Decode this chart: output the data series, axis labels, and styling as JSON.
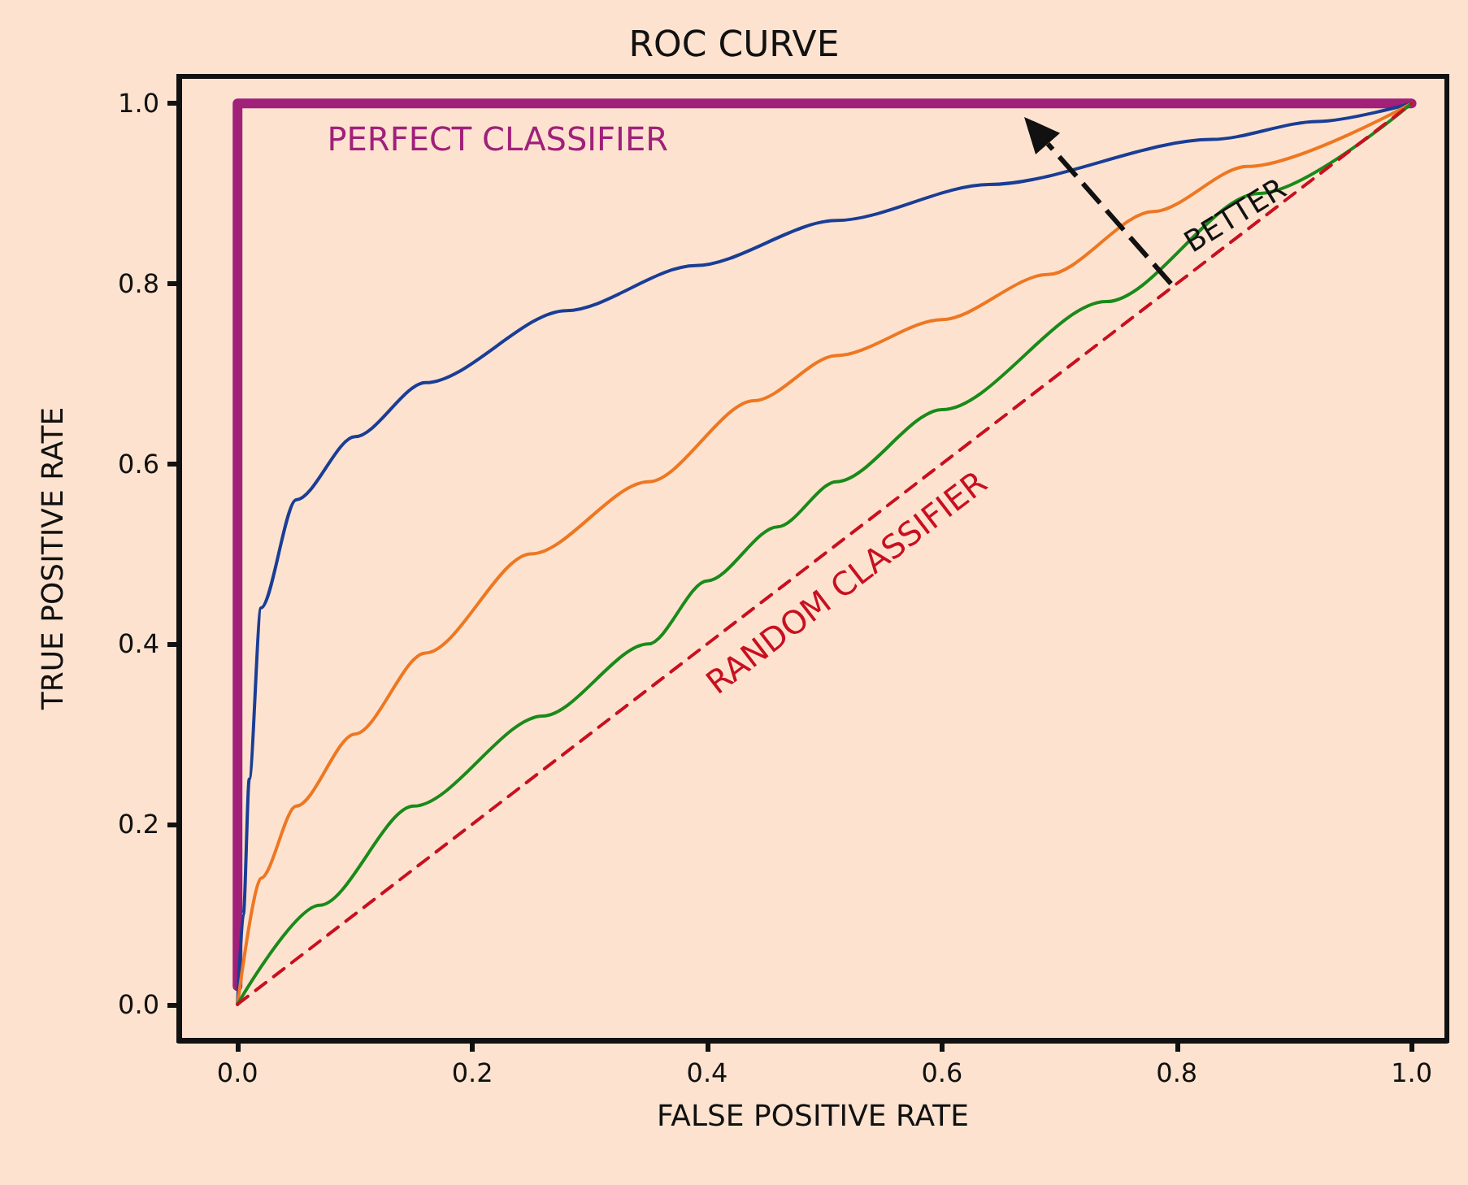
{
  "chart_data": {
    "type": "line",
    "title": "ROC CURVE",
    "xlabel": "FALSE POSITIVE RATE",
    "ylabel": "TRUE POSITIVE RATE",
    "annotations": [
      "BETTER"
    ],
    "series": [
      {
        "name": "PERFECT CLASSIFIER",
        "color": "#a0207a",
        "x": [
          0,
          0,
          1
        ],
        "values": [
          0.02,
          1,
          1
        ]
      },
      {
        "color": "#1a3d96",
        "x": [
          0,
          0.005,
          0.01,
          0.02,
          0.05,
          0.1,
          0.16,
          0.28,
          0.39,
          0.51,
          0.64,
          0.83,
          0.92,
          1
        ],
        "values": [
          0,
          0.1,
          0.25,
          0.44,
          0.56,
          0.63,
          0.69,
          0.77,
          0.82,
          0.87,
          0.91,
          0.96,
          0.98,
          1
        ]
      },
      {
        "color": "#ee7722",
        "x": [
          0,
          0.02,
          0.05,
          0.1,
          0.16,
          0.25,
          0.35,
          0.44,
          0.51,
          0.6,
          0.69,
          0.78,
          0.86,
          1
        ],
        "values": [
          0,
          0.14,
          0.22,
          0.3,
          0.39,
          0.5,
          0.58,
          0.67,
          0.72,
          0.76,
          0.81,
          0.88,
          0.93,
          1
        ]
      },
      {
        "color": "#1a8a1a",
        "x": [
          0,
          0.07,
          0.15,
          0.26,
          0.35,
          0.4,
          0.46,
          0.51,
          0.6,
          0.74,
          0.87,
          1
        ],
        "values": [
          0,
          0.11,
          0.22,
          0.32,
          0.4,
          0.47,
          0.53,
          0.58,
          0.66,
          0.78,
          0.9,
          1
        ]
      },
      {
        "name": "RANDOM CLASSIFIER",
        "color": "#c81020",
        "line_style": "dashed",
        "x": [
          0,
          1
        ],
        "values": [
          0,
          1
        ]
      }
    ],
    "xlim": [
      -0.05,
      1.03
    ],
    "ylim": [
      -0.04,
      1.03
    ],
    "xticks": [
      {
        "value": 0,
        "label": "0.0"
      },
      {
        "value": 0.2,
        "label": "0.2"
      },
      {
        "value": 0.4,
        "label": "0.4"
      },
      {
        "value": 0.6,
        "label": "0.6"
      },
      {
        "value": 0.8,
        "label": "0.8"
      },
      {
        "value": 1,
        "label": "1.0"
      }
    ],
    "yticks": [
      {
        "value": 0,
        "label": "0.0"
      },
      {
        "value": 0.2,
        "label": "0.2"
      },
      {
        "value": 0.4,
        "label": "0.4"
      },
      {
        "value": 0.6,
        "label": "0.6"
      },
      {
        "value": 0.8,
        "label": "0.8"
      },
      {
        "value": 1,
        "label": "1.0"
      }
    ],
    "grid": false,
    "legend": false,
    "marker": "none",
    "line_style": "solid"
  }
}
